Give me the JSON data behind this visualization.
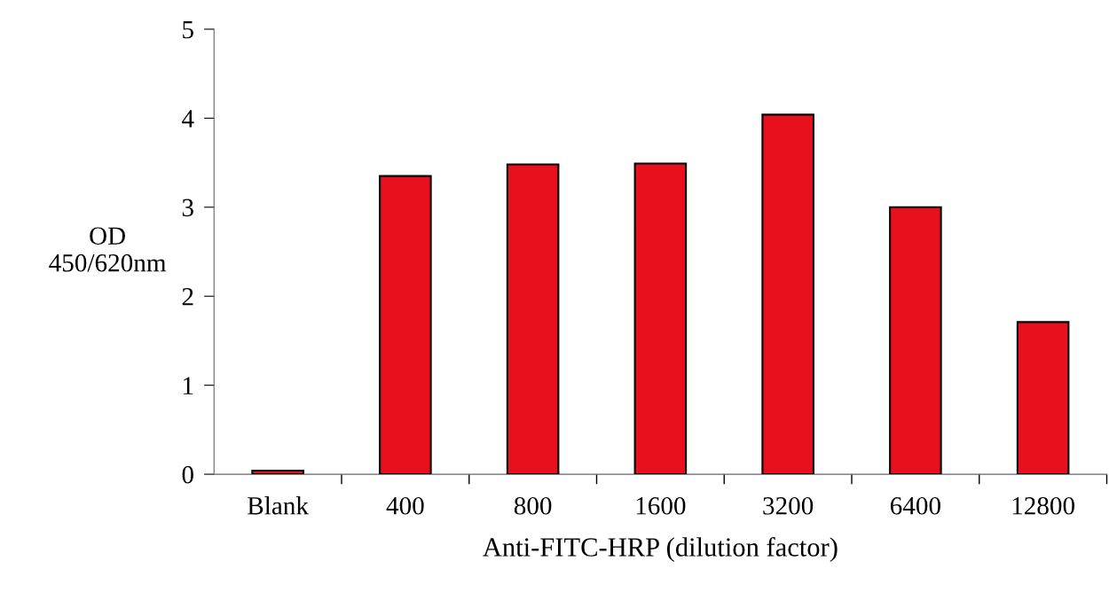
{
  "chart_data": {
    "type": "bar",
    "xlabel": "Anti-FITC-HRP (dilution factor)",
    "ylabel": "OD\n450/620nm",
    "categories": [
      "Blank",
      "400",
      "800",
      "1600",
      "3200",
      "6400",
      "12800"
    ],
    "values": [
      0.04,
      3.35,
      3.48,
      3.49,
      4.04,
      3.0,
      1.71
    ],
    "color": "#e8101c",
    "ylim": [
      0,
      5
    ],
    "yticks": [
      0,
      1,
      2,
      3,
      4,
      5
    ],
    "grid": false,
    "legend": false
  }
}
